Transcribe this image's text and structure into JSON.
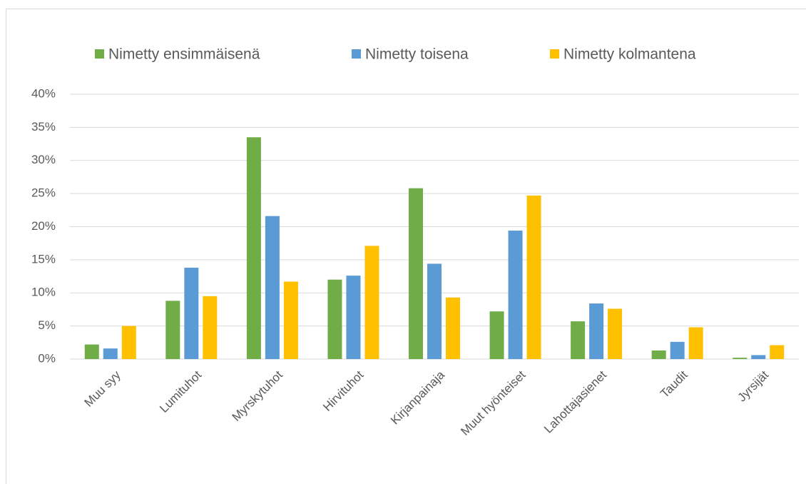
{
  "chart_data": {
    "type": "bar",
    "categories": [
      "Muu syy",
      "Lumituhot",
      "Myrskytuhot",
      "Hirvituhot",
      "Kirjanpainaja",
      "Muut hyönteiset",
      "Lahottajasienet",
      "Taudit",
      "Jyrsijät"
    ],
    "series": [
      {
        "name": "Nimetty ensimmäisenä",
        "color": "#70ad47",
        "values": [
          2.2,
          8.8,
          33.5,
          12.0,
          25.8,
          7.2,
          5.7,
          1.3,
          0.2
        ]
      },
      {
        "name": "Nimetty toisena",
        "color": "#5b9bd5",
        "values": [
          1.6,
          13.8,
          21.6,
          12.6,
          14.4,
          19.4,
          8.4,
          2.6,
          0.6
        ]
      },
      {
        "name": "Nimetty kolmantena",
        "color": "#ffc000",
        "values": [
          5.0,
          9.5,
          11.7,
          17.1,
          9.3,
          24.7,
          7.6,
          4.8,
          2.1
        ]
      }
    ],
    "ylim": [
      0,
      40
    ],
    "yticks": [
      {
        "value": 0,
        "label": "0%"
      },
      {
        "value": 5,
        "label": "5%"
      },
      {
        "value": 10,
        "label": "10%"
      },
      {
        "value": 15,
        "label": "15%"
      },
      {
        "value": 20,
        "label": "20%"
      },
      {
        "value": 25,
        "label": "25%"
      },
      {
        "value": 30,
        "label": "30%"
      },
      {
        "value": 35,
        "label": "35%"
      },
      {
        "value": 40,
        "label": "40%"
      }
    ],
    "grid": true,
    "legend": "top"
  }
}
